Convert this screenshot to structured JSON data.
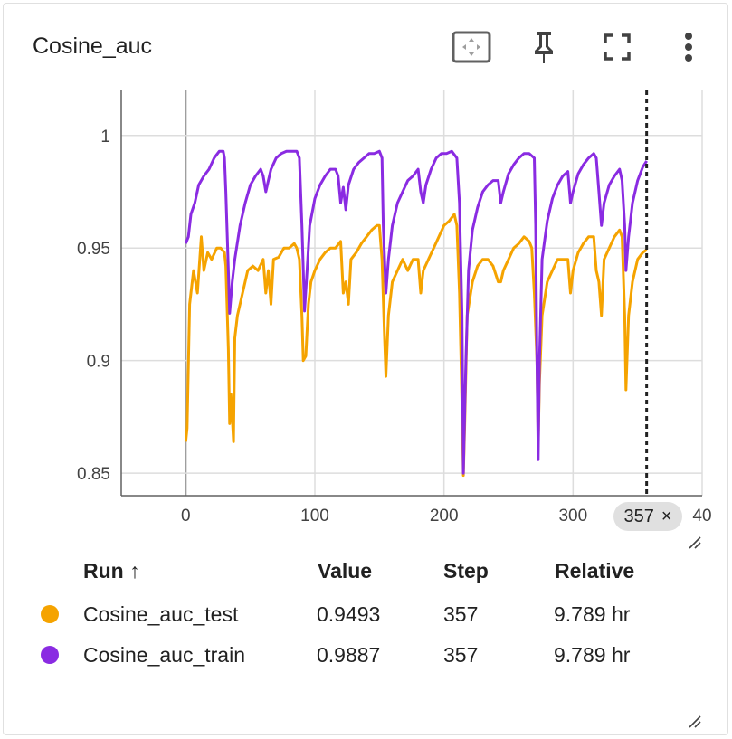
{
  "header": {
    "title": "Cosine_auc",
    "icons": [
      "fit-domain-icon",
      "pin-icon",
      "fullscreen-icon",
      "more-vert-icon"
    ]
  },
  "step_badge": {
    "label": "357",
    "close": "×"
  },
  "table": {
    "headers": {
      "run": "Run ↑",
      "value": "Value",
      "step": "Step",
      "relative": "Relative"
    },
    "rows": [
      {
        "name": "Cosine_auc_test",
        "value": "0.9493",
        "step": "357",
        "relative": "9.789 hr",
        "color": "#f5a300"
      },
      {
        "name": "Cosine_auc_train",
        "value": "0.9887",
        "step": "357",
        "relative": "9.789 hr",
        "color": "#8a2be2"
      }
    ]
  },
  "chart_data": {
    "type": "line",
    "title": "Cosine_auc",
    "xlabel": "",
    "ylabel": "",
    "xlim": [
      -50,
      400
    ],
    "ylim": [
      0.84,
      1.02
    ],
    "x_ticks": [
      "0",
      "100",
      "200",
      "300",
      "40"
    ],
    "y_ticks": [
      "0.85",
      "0.9",
      "0.95",
      "1"
    ],
    "grid": true,
    "cursor_step": 357,
    "series": [
      {
        "name": "Cosine_auc_test",
        "color": "#f5a300",
        "points": [
          [
            0,
            0.864
          ],
          [
            1,
            0.87
          ],
          [
            3,
            0.925
          ],
          [
            6,
            0.94
          ],
          [
            9,
            0.93
          ],
          [
            12,
            0.955
          ],
          [
            14,
            0.94
          ],
          [
            17,
            0.948
          ],
          [
            20,
            0.945
          ],
          [
            24,
            0.95
          ],
          [
            27,
            0.95
          ],
          [
            30,
            0.948
          ],
          [
            31,
            0.942
          ],
          [
            33,
            0.905
          ],
          [
            34,
            0.872
          ],
          [
            35,
            0.885
          ],
          [
            37,
            0.864
          ],
          [
            38,
            0.91
          ],
          [
            40,
            0.92
          ],
          [
            44,
            0.93
          ],
          [
            48,
            0.94
          ],
          [
            52,
            0.942
          ],
          [
            56,
            0.94
          ],
          [
            60,
            0.945
          ],
          [
            62,
            0.93
          ],
          [
            64,
            0.94
          ],
          [
            66,
            0.925
          ],
          [
            68,
            0.945
          ],
          [
            72,
            0.946
          ],
          [
            76,
            0.95
          ],
          [
            80,
            0.95
          ],
          [
            84,
            0.952
          ],
          [
            86,
            0.95
          ],
          [
            88,
            0.945
          ],
          [
            90,
            0.92
          ],
          [
            91,
            0.9
          ],
          [
            93,
            0.902
          ],
          [
            95,
            0.925
          ],
          [
            97,
            0.935
          ],
          [
            100,
            0.94
          ],
          [
            104,
            0.945
          ],
          [
            108,
            0.948
          ],
          [
            112,
            0.95
          ],
          [
            116,
            0.95
          ],
          [
            120,
            0.953
          ],
          [
            122,
            0.93
          ],
          [
            124,
            0.935
          ],
          [
            126,
            0.925
          ],
          [
            128,
            0.945
          ],
          [
            132,
            0.948
          ],
          [
            136,
            0.952
          ],
          [
            140,
            0.955
          ],
          [
            144,
            0.958
          ],
          [
            148,
            0.96
          ],
          [
            150,
            0.96
          ],
          [
            152,
            0.945
          ],
          [
            154,
            0.91
          ],
          [
            155,
            0.893
          ],
          [
            157,
            0.92
          ],
          [
            160,
            0.935
          ],
          [
            164,
            0.94
          ],
          [
            168,
            0.945
          ],
          [
            172,
            0.94
          ],
          [
            176,
            0.945
          ],
          [
            180,
            0.945
          ],
          [
            182,
            0.93
          ],
          [
            184,
            0.94
          ],
          [
            188,
            0.945
          ],
          [
            192,
            0.95
          ],
          [
            196,
            0.955
          ],
          [
            200,
            0.96
          ],
          [
            204,
            0.962
          ],
          [
            208,
            0.965
          ],
          [
            210,
            0.96
          ],
          [
            212,
            0.93
          ],
          [
            214,
            0.88
          ],
          [
            215,
            0.849
          ],
          [
            216,
            0.87
          ],
          [
            218,
            0.92
          ],
          [
            222,
            0.935
          ],
          [
            226,
            0.942
          ],
          [
            230,
            0.945
          ],
          [
            234,
            0.945
          ],
          [
            238,
            0.942
          ],
          [
            242,
            0.935
          ],
          [
            244,
            0.935
          ],
          [
            246,
            0.94
          ],
          [
            250,
            0.945
          ],
          [
            254,
            0.95
          ],
          [
            258,
            0.952
          ],
          [
            262,
            0.955
          ],
          [
            266,
            0.953
          ],
          [
            268,
            0.95
          ],
          [
            270,
            0.93
          ],
          [
            272,
            0.9
          ],
          [
            273,
            0.862
          ],
          [
            274,
            0.89
          ],
          [
            276,
            0.92
          ],
          [
            280,
            0.935
          ],
          [
            284,
            0.94
          ],
          [
            288,
            0.945
          ],
          [
            292,
            0.945
          ],
          [
            296,
            0.945
          ],
          [
            298,
            0.93
          ],
          [
            300,
            0.94
          ],
          [
            304,
            0.948
          ],
          [
            308,
            0.952
          ],
          [
            312,
            0.955
          ],
          [
            316,
            0.955
          ],
          [
            318,
            0.94
          ],
          [
            320,
            0.935
          ],
          [
            322,
            0.92
          ],
          [
            324,
            0.945
          ],
          [
            328,
            0.95
          ],
          [
            332,
            0.955
          ],
          [
            336,
            0.958
          ],
          [
            338,
            0.955
          ],
          [
            340,
            0.92
          ],
          [
            341,
            0.887
          ],
          [
            343,
            0.92
          ],
          [
            346,
            0.935
          ],
          [
            350,
            0.945
          ],
          [
            354,
            0.948
          ],
          [
            357,
            0.9493
          ]
        ]
      },
      {
        "name": "Cosine_auc_train",
        "color": "#8a2be2",
        "points": [
          [
            0,
            0.952
          ],
          [
            2,
            0.955
          ],
          [
            4,
            0.965
          ],
          [
            7,
            0.97
          ],
          [
            10,
            0.978
          ],
          [
            14,
            0.982
          ],
          [
            18,
            0.985
          ],
          [
            22,
            0.99
          ],
          [
            26,
            0.993
          ],
          [
            29,
            0.993
          ],
          [
            30,
            0.99
          ],
          [
            31,
            0.975
          ],
          [
            33,
            0.94
          ],
          [
            34,
            0.921
          ],
          [
            36,
            0.935
          ],
          [
            38,
            0.945
          ],
          [
            42,
            0.96
          ],
          [
            46,
            0.97
          ],
          [
            50,
            0.978
          ],
          [
            54,
            0.982
          ],
          [
            58,
            0.985
          ],
          [
            60,
            0.982
          ],
          [
            62,
            0.975
          ],
          [
            64,
            0.98
          ],
          [
            66,
            0.985
          ],
          [
            70,
            0.99
          ],
          [
            74,
            0.992
          ],
          [
            78,
            0.993
          ],
          [
            82,
            0.993
          ],
          [
            86,
            0.993
          ],
          [
            88,
            0.99
          ],
          [
            90,
            0.96
          ],
          [
            92,
            0.922
          ],
          [
            94,
            0.94
          ],
          [
            96,
            0.96
          ],
          [
            100,
            0.972
          ],
          [
            104,
            0.978
          ],
          [
            108,
            0.982
          ],
          [
            112,
            0.985
          ],
          [
            116,
            0.985
          ],
          [
            118,
            0.982
          ],
          [
            120,
            0.97
          ],
          [
            122,
            0.977
          ],
          [
            124,
            0.967
          ],
          [
            126,
            0.978
          ],
          [
            130,
            0.985
          ],
          [
            134,
            0.988
          ],
          [
            138,
            0.99
          ],
          [
            142,
            0.992
          ],
          [
            146,
            0.992
          ],
          [
            150,
            0.993
          ],
          [
            152,
            0.99
          ],
          [
            153,
            0.96
          ],
          [
            155,
            0.93
          ],
          [
            157,
            0.945
          ],
          [
            160,
            0.96
          ],
          [
            164,
            0.97
          ],
          [
            168,
            0.975
          ],
          [
            172,
            0.98
          ],
          [
            176,
            0.982
          ],
          [
            180,
            0.985
          ],
          [
            182,
            0.975
          ],
          [
            184,
            0.97
          ],
          [
            186,
            0.978
          ],
          [
            190,
            0.985
          ],
          [
            194,
            0.99
          ],
          [
            198,
            0.992
          ],
          [
            202,
            0.992
          ],
          [
            206,
            0.993
          ],
          [
            210,
            0.99
          ],
          [
            212,
            0.97
          ],
          [
            214,
            0.92
          ],
          [
            215,
            0.85
          ],
          [
            217,
            0.9
          ],
          [
            219,
            0.94
          ],
          [
            222,
            0.958
          ],
          [
            226,
            0.968
          ],
          [
            230,
            0.975
          ],
          [
            234,
            0.978
          ],
          [
            238,
            0.98
          ],
          [
            242,
            0.98
          ],
          [
            244,
            0.97
          ],
          [
            246,
            0.975
          ],
          [
            250,
            0.983
          ],
          [
            254,
            0.987
          ],
          [
            258,
            0.99
          ],
          [
            262,
            0.992
          ],
          [
            266,
            0.992
          ],
          [
            270,
            0.99
          ],
          [
            271,
            0.96
          ],
          [
            272,
            0.9
          ],
          [
            273,
            0.856
          ],
          [
            274,
            0.9
          ],
          [
            276,
            0.945
          ],
          [
            280,
            0.962
          ],
          [
            284,
            0.972
          ],
          [
            288,
            0.978
          ],
          [
            292,
            0.982
          ],
          [
            296,
            0.984
          ],
          [
            298,
            0.97
          ],
          [
            300,
            0.975
          ],
          [
            304,
            0.983
          ],
          [
            308,
            0.987
          ],
          [
            312,
            0.99
          ],
          [
            316,
            0.992
          ],
          [
            318,
            0.99
          ],
          [
            320,
            0.975
          ],
          [
            322,
            0.96
          ],
          [
            324,
            0.97
          ],
          [
            328,
            0.978
          ],
          [
            332,
            0.982
          ],
          [
            336,
            0.985
          ],
          [
            338,
            0.98
          ],
          [
            340,
            0.96
          ],
          [
            341,
            0.94
          ],
          [
            343,
            0.955
          ],
          [
            346,
            0.97
          ],
          [
            350,
            0.98
          ],
          [
            354,
            0.986
          ],
          [
            357,
            0.9887
          ]
        ]
      }
    ]
  }
}
